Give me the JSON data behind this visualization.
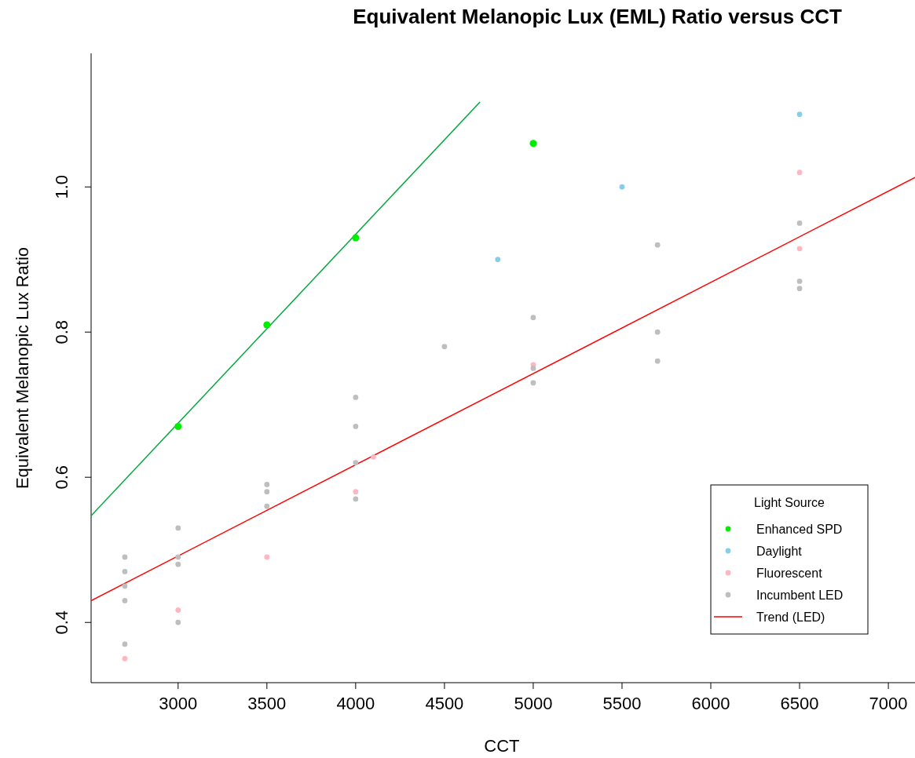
{
  "chart_data": {
    "type": "scatter",
    "title": "Equivalent Melanopic Lux (EML) Ratio versus CCT",
    "xlabel": "CCT",
    "ylabel": "Equivalent Melanopic Lux Ratio",
    "legend_title": "Light Source",
    "legend": "bottom right",
    "grid": false,
    "xlim": [
      2510,
      7150
    ],
    "ylim": [
      0.317,
      1.184
    ],
    "xticks": [
      3000,
      3500,
      4000,
      4500,
      5000,
      5500,
      6000,
      6500,
      7000
    ],
    "yticks": [
      0.4,
      0.6,
      0.8,
      {
        "value": 1,
        "label": "1.0"
      }
    ],
    "series": [
      {
        "name": "Enhanced SPD",
        "marker": "circle",
        "color": "#00ee00",
        "x": [
          3000,
          3500,
          4000,
          5000
        ],
        "values": [
          0.67,
          0.81,
          0.93,
          1.06
        ]
      },
      {
        "name": "Daylight",
        "marker": "circle",
        "color": "#87ceeb",
        "x": [
          4800,
          5500,
          6500
        ],
        "values": [
          0.9,
          1.0,
          1.1
        ]
      },
      {
        "name": "Fluorescent",
        "marker": "circle",
        "color": "#ffb6c1",
        "x": [
          2700,
          3000,
          3500,
          4000,
          4100,
          5000,
          6500,
          6500
        ],
        "values": [
          0.35,
          0.417,
          0.49,
          0.58,
          0.628,
          0.755,
          1.02,
          0.915
        ]
      },
      {
        "name": "Incumbent LED",
        "marker": "circle",
        "color": "#bebebe",
        "x": [
          2700,
          2700,
          2700,
          2700,
          2700,
          3000,
          3000,
          3000,
          3000,
          3500,
          3500,
          3500,
          4000,
          4000,
          4000,
          4000,
          4500,
          5000,
          5000,
          5000,
          5700,
          5700,
          5700,
          6500,
          6500,
          6500
        ],
        "values": [
          0.49,
          0.47,
          0.45,
          0.43,
          0.37,
          0.53,
          0.49,
          0.48,
          0.4,
          0.59,
          0.58,
          0.56,
          0.71,
          0.67,
          0.62,
          0.57,
          0.78,
          0.82,
          0.75,
          0.73,
          0.92,
          0.8,
          0.76,
          0.95,
          0.87,
          0.86
        ]
      },
      {
        "name": "Trend (LED)",
        "type": "line",
        "color": "#ff0000",
        "x": [
          2510,
          7150
        ],
        "values": [
          0.43,
          1.013
        ]
      },
      {
        "type": "line",
        "color": "#00a83c",
        "x": [
          2510,
          4700
        ],
        "values": [
          0.547,
          1.117
        ]
      }
    ]
  }
}
